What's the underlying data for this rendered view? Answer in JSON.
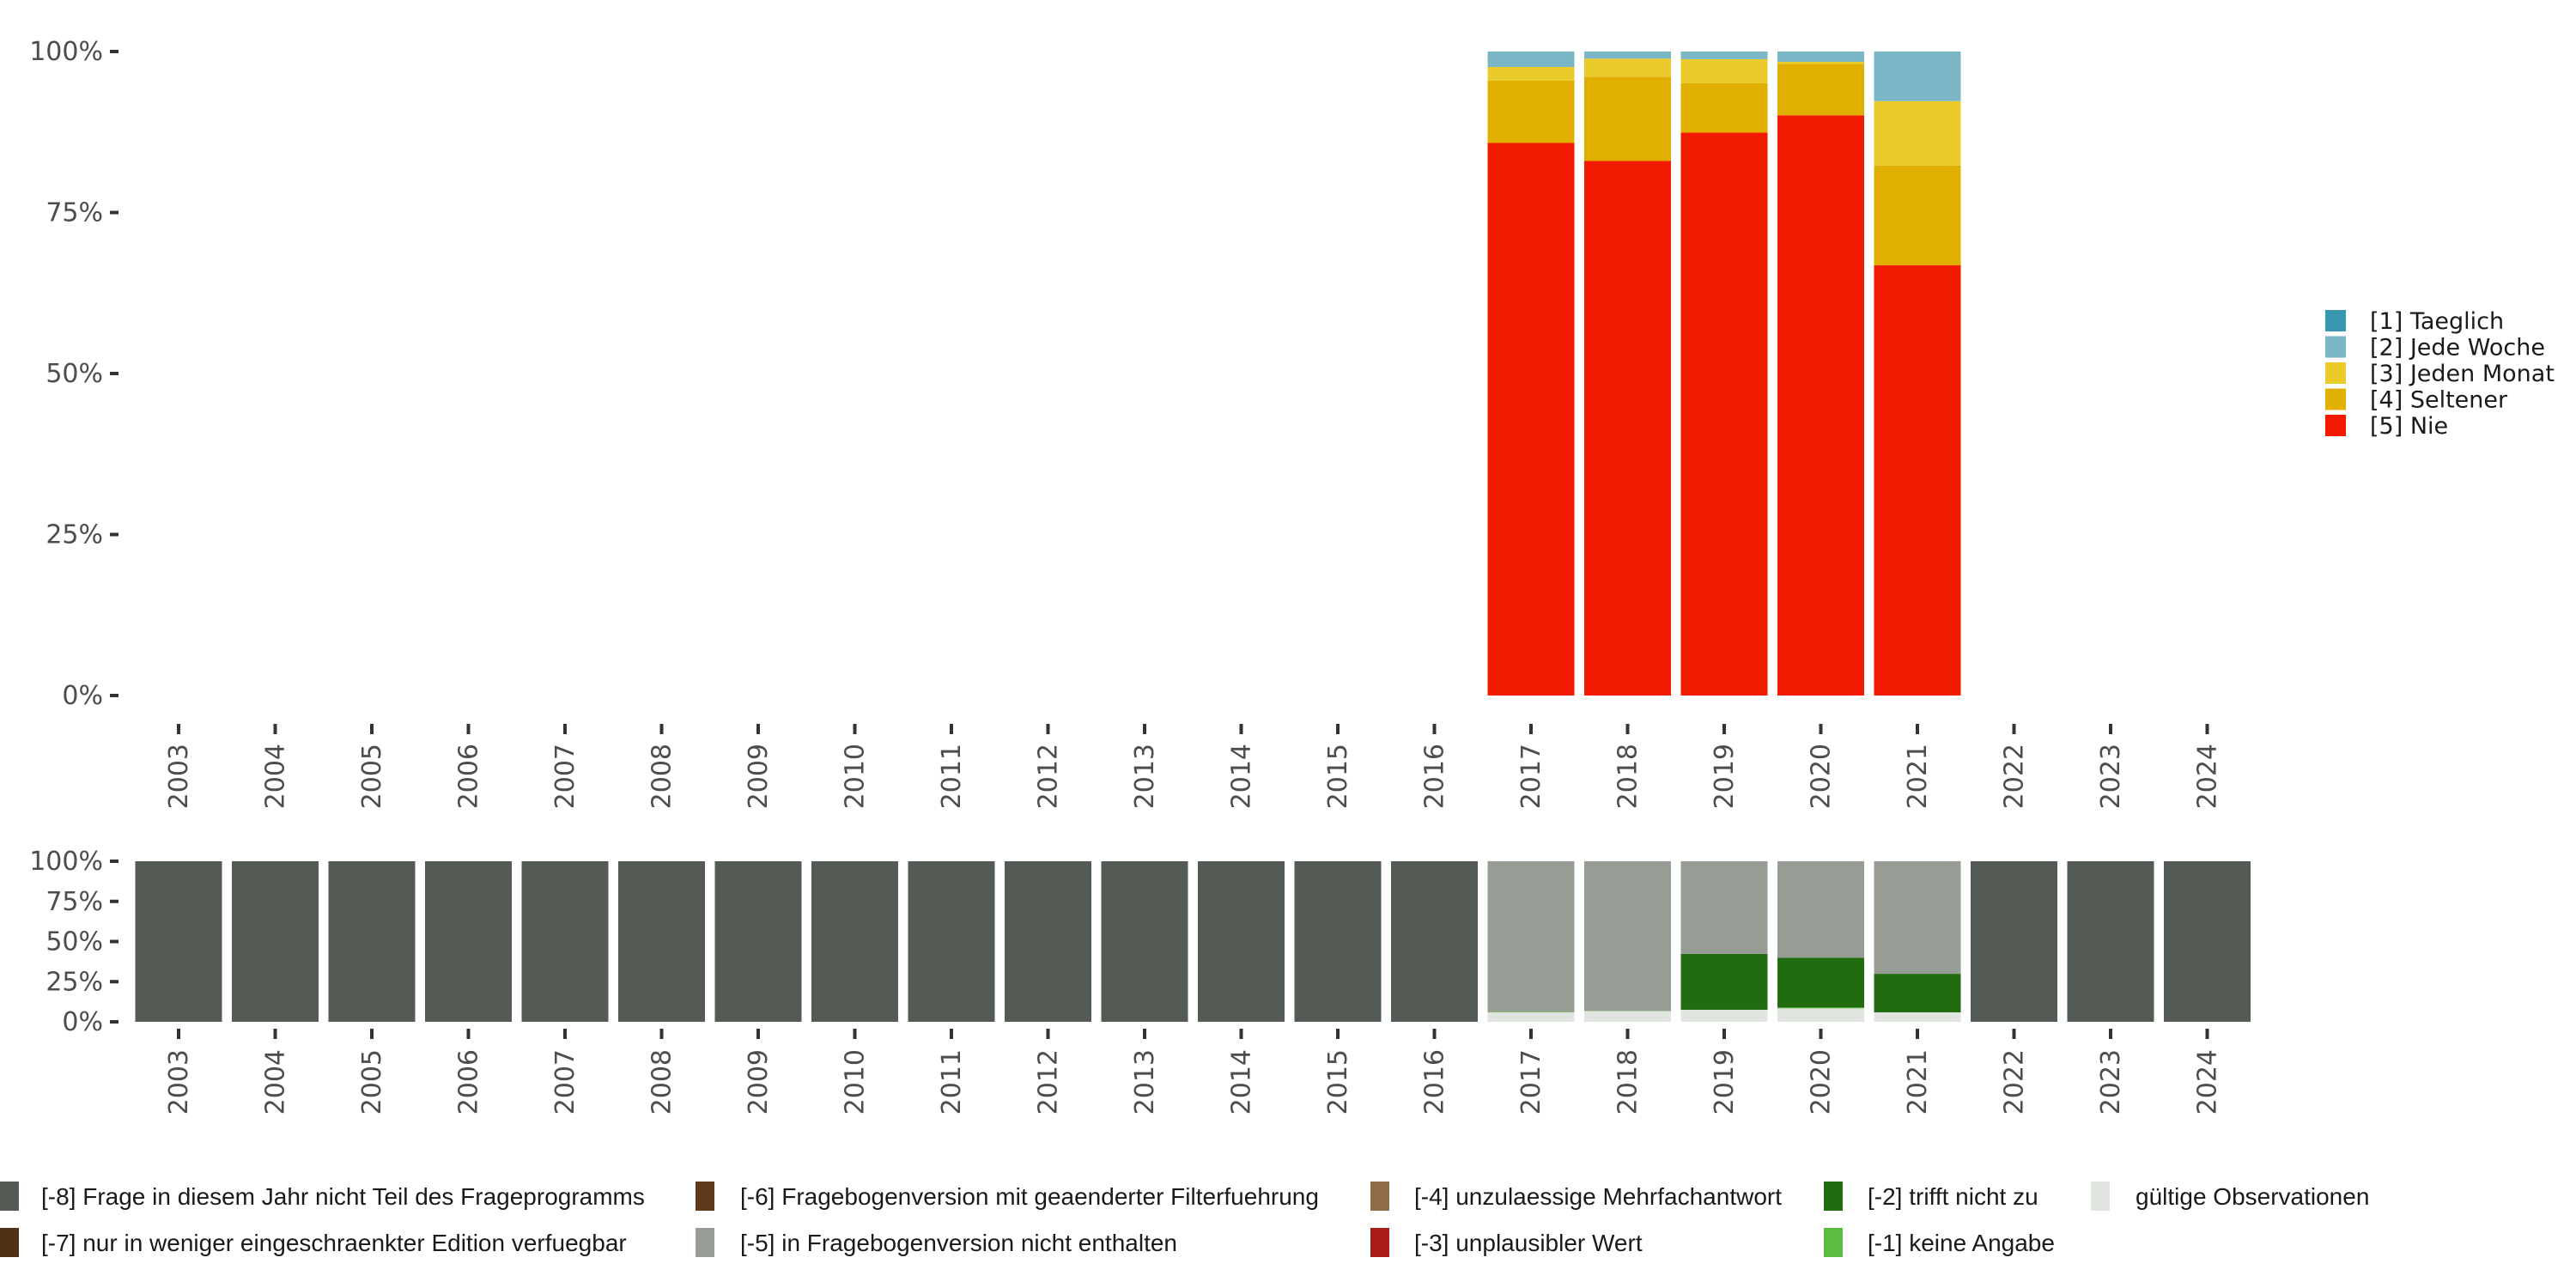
{
  "chart_data": [
    {
      "type": "bar",
      "stacked": true,
      "title": "",
      "xlabel": "",
      "ylabel": "",
      "ylim": [
        0,
        100
      ],
      "yticks": [
        "0%",
        "25%",
        "50%",
        "75%",
        "100%"
      ],
      "categories": [
        "2003",
        "2004",
        "2005",
        "2006",
        "2007",
        "2008",
        "2009",
        "2010",
        "2011",
        "2012",
        "2013",
        "2014",
        "2015",
        "2016",
        "2017",
        "2018",
        "2019",
        "2020",
        "2021",
        "2022",
        "2023",
        "2024"
      ],
      "legend_position": "right",
      "series": [
        {
          "name": "[5] Nie",
          "color": "#f21a00",
          "values": [
            0,
            0,
            0,
            0,
            0,
            0,
            0,
            0,
            0,
            0,
            0,
            0,
            0,
            0,
            85.8,
            83.0,
            87.4,
            90.1,
            66.8,
            0,
            0,
            0
          ]
        },
        {
          "name": "[4] Seltener",
          "color": "#e0af00",
          "values": [
            0,
            0,
            0,
            0,
            0,
            0,
            0,
            0,
            0,
            0,
            0,
            0,
            0,
            0,
            9.7,
            13.1,
            7.7,
            8.0,
            15.5,
            0,
            0,
            0
          ]
        },
        {
          "name": "[3] Jeden Monat",
          "color": "#ebcb2c",
          "values": [
            0,
            0,
            0,
            0,
            0,
            0,
            0,
            0,
            0,
            0,
            0,
            0,
            0,
            0,
            2.1,
            2.8,
            3.7,
            0.3,
            10.0,
            0,
            0,
            0
          ]
        },
        {
          "name": "[2] Jede Woche",
          "color": "#7bb6c6",
          "values": [
            0,
            0,
            0,
            0,
            0,
            0,
            0,
            0,
            0,
            0,
            0,
            0,
            0,
            0,
            2.4,
            1.1,
            1.2,
            1.6,
            7.7,
            0,
            0,
            0
          ]
        },
        {
          "name": "[1] Taeglich",
          "color": "#3a97b0",
          "values": [
            0,
            0,
            0,
            0,
            0,
            0,
            0,
            0,
            0,
            0,
            0,
            0,
            0,
            0,
            0,
            0,
            0,
            0,
            0,
            0,
            0,
            0
          ]
        }
      ],
      "legend": [
        "[1] Taeglich",
        "[2] Jede Woche",
        "[3] Jeden Monat",
        "[4] Seltener",
        "[5] Nie"
      ]
    },
    {
      "type": "bar",
      "stacked": true,
      "title": "",
      "xlabel": "",
      "ylabel": "",
      "ylim": [
        0,
        100
      ],
      "yticks": [
        "0%",
        "25%",
        "50%",
        "75%",
        "100%"
      ],
      "categories": [
        "2003",
        "2004",
        "2005",
        "2006",
        "2007",
        "2008",
        "2009",
        "2010",
        "2011",
        "2012",
        "2013",
        "2014",
        "2015",
        "2016",
        "2017",
        "2018",
        "2019",
        "2020",
        "2021",
        "2022",
        "2023",
        "2024"
      ],
      "legend_position": "bottom",
      "series": [
        {
          "name": "gültige Observationen",
          "color": "#e0e5e0",
          "values": [
            0,
            0,
            0,
            0,
            0,
            0,
            0,
            0,
            0,
            0,
            0,
            0,
            0,
            0,
            5.9,
            6.6,
            7.5,
            8.4,
            5.9,
            0,
            0,
            0
          ]
        },
        {
          "name": "[-1] keine Angabe",
          "color": "#5bbd3f",
          "values": [
            0,
            0,
            0,
            0,
            0,
            0,
            0,
            0,
            0,
            0,
            0,
            0,
            0,
            0,
            0.3,
            0.2,
            0,
            0.5,
            0,
            0,
            0,
            0
          ]
        },
        {
          "name": "[-2] trifft nicht zu",
          "color": "#226c10",
          "values": [
            0,
            0,
            0,
            0,
            0,
            0,
            0,
            0,
            0,
            0,
            0,
            0,
            0,
            0,
            0,
            0,
            34.8,
            31.0,
            24.0,
            0,
            0,
            0
          ]
        },
        {
          "name": "[-3] unplausibler Wert",
          "color": "#a91d16",
          "values": [
            0,
            0,
            0,
            0,
            0,
            0,
            0,
            0,
            0,
            0,
            0,
            0,
            0,
            0,
            0,
            0,
            0,
            0,
            0,
            0,
            0,
            0
          ]
        },
        {
          "name": "[-4] unzulaessige Mehrfachantwort",
          "color": "#8f6b47",
          "values": [
            0,
            0,
            0,
            0,
            0,
            0,
            0,
            0,
            0,
            0,
            0,
            0,
            0,
            0,
            0,
            0,
            0,
            0,
            0,
            0,
            0,
            0
          ]
        },
        {
          "name": "[-5] in Fragebogenversion nicht enthalten",
          "color": "#979c95",
          "values": [
            0,
            0,
            0,
            0,
            0,
            0,
            0,
            0,
            0,
            0,
            0,
            0,
            0,
            0,
            93.8,
            93.2,
            57.7,
            60.1,
            70.1,
            0,
            0,
            0
          ]
        },
        {
          "name": "[-6] Fragebogenversion mit geaenderter Filterfuehrung",
          "color": "#5e3a1a",
          "values": [
            0,
            0,
            0,
            0,
            0,
            0,
            0,
            0,
            0,
            0,
            0,
            0,
            0,
            0,
            0,
            0,
            0,
            0,
            0,
            0,
            0,
            0
          ]
        },
        {
          "name": "[-7] nur in weniger eingeschraenkter Edition verfuegbar",
          "color": "#4f3118",
          "values": [
            0,
            0,
            0,
            0,
            0,
            0,
            0,
            0,
            0,
            0,
            0,
            0,
            0,
            0,
            0,
            0,
            0,
            0,
            0,
            0,
            0,
            0
          ]
        },
        {
          "name": "[-8] Frage in diesem Jahr nicht Teil des Frageprogramms",
          "color": "#535b54",
          "values": [
            100,
            100,
            100,
            100,
            100,
            100,
            100,
            100,
            100,
            100,
            100,
            100,
            100,
            100,
            0,
            0,
            0,
            0,
            0,
            100,
            100,
            100
          ]
        }
      ],
      "legend": [
        "[-8] Frage in diesem Jahr nicht Teil des Frageprogramms",
        "[-7] nur in weniger eingeschraenkter Edition verfuegbar",
        "[-6] Fragebogenversion mit geaenderter Filterfuehrung",
        "[-5] in Fragebogenversion nicht enthalten",
        "[-4] unzulaessige Mehrfachantwort",
        "[-3] unplausibler Wert",
        "[-2] trifft nicht zu",
        "[-1] keine Angabe",
        "gültige Observationen"
      ]
    }
  ]
}
